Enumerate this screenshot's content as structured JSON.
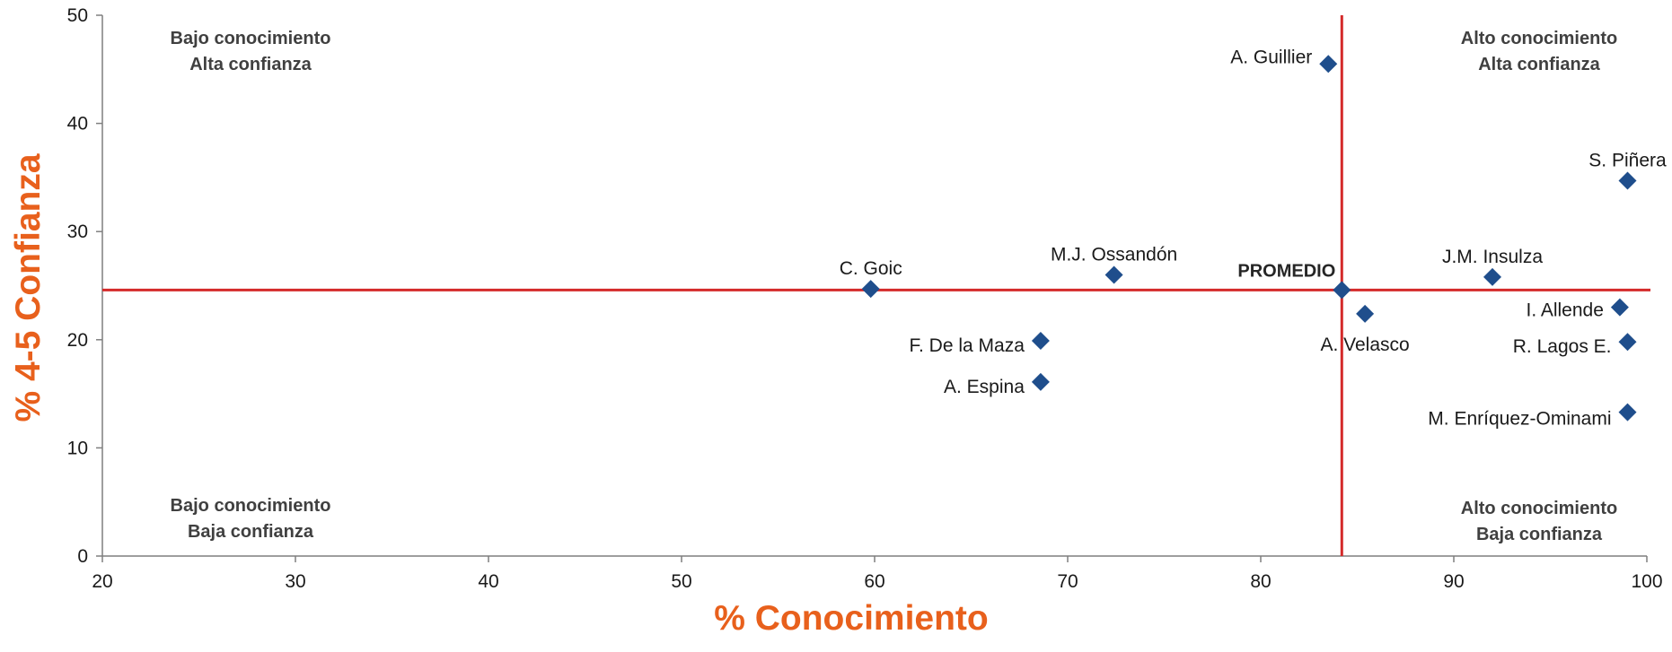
{
  "chart_data": {
    "type": "scatter",
    "title": "",
    "xlabel": "% Conocimiento",
    "ylabel": "% 4-5 Confianza",
    "xlim": [
      20,
      100
    ],
    "ylim": [
      0,
      50
    ],
    "x_ticks": [
      20,
      30,
      40,
      50,
      60,
      70,
      80,
      90,
      100
    ],
    "y_ticks": [
      0,
      10,
      20,
      30,
      40,
      50
    ],
    "grid": false,
    "axis_title_color": "#e8601c",
    "marker_color": "#1f4e8c",
    "average_line_color": "#d42a2a",
    "average": {
      "label": "PROMEDIO",
      "x": 84.2,
      "y": 24.6
    },
    "points": [
      {
        "name": "A. Guillier",
        "x": 83.5,
        "y": 45.5,
        "label_side": "left"
      },
      {
        "name": "S. Piñera",
        "x": 99.0,
        "y": 34.7,
        "label_side": "above"
      },
      {
        "name": "C. Goic",
        "x": 59.8,
        "y": 24.7,
        "label_side": "above"
      },
      {
        "name": "M.J. Ossandón",
        "x": 72.4,
        "y": 26.0,
        "label_side": "above"
      },
      {
        "name": "J.M. Insulza",
        "x": 92.0,
        "y": 25.8,
        "label_side": "above"
      },
      {
        "name": "A. Velasco",
        "x": 85.4,
        "y": 22.4,
        "label_side": "below"
      },
      {
        "name": "I. Allende",
        "x": 98.6,
        "y": 23.0,
        "label_side": "left"
      },
      {
        "name": "F. De la Maza",
        "x": 68.6,
        "y": 19.9,
        "label_side": "left"
      },
      {
        "name": "R. Lagos E.",
        "x": 99.0,
        "y": 19.8,
        "label_side": "left"
      },
      {
        "name": "A. Espina",
        "x": 68.6,
        "y": 16.1,
        "label_side": "left"
      },
      {
        "name": "M. Enríquez-Ominami",
        "x": 99.0,
        "y": 13.3,
        "label_side": "left"
      }
    ],
    "quadrants": [
      {
        "line1": "Bajo conocimiento",
        "line2": "Alta confianza",
        "position": "top-left"
      },
      {
        "line1": "Alto conocimiento",
        "line2": "Alta confianza",
        "position": "top-right"
      },
      {
        "line1": "Bajo conocimiento",
        "line2": "Baja confianza",
        "position": "bottom-left"
      },
      {
        "line1": "Alto conocimiento",
        "line2": "Baja confianza",
        "position": "bottom-right"
      }
    ]
  }
}
